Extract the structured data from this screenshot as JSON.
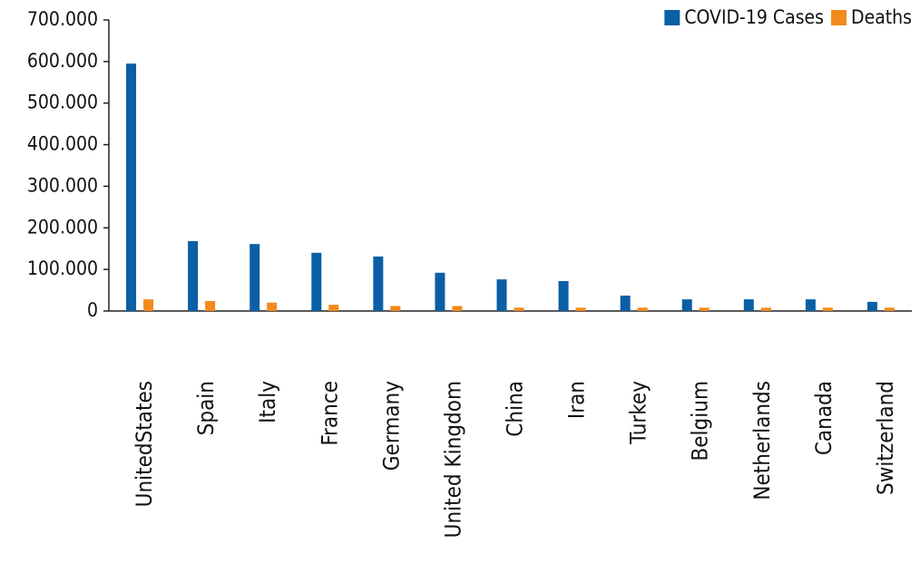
{
  "chart_data": {
    "type": "bar",
    "categories": [
      "UnitedStates",
      "Spain",
      "Italy",
      "France",
      "Germany",
      "United Kingdom",
      "China",
      "Iran",
      "Turkey",
      "Belgium",
      "Netherlands",
      "Canada",
      "Switzerland"
    ],
    "series": [
      {
        "name": "COVID-19 Cases",
        "color": "#0b5fa5",
        "values": [
          595000,
          168000,
          161000,
          140000,
          131000,
          92000,
          76000,
          72000,
          37000,
          28000,
          28000,
          28000,
          22000
        ]
      },
      {
        "name": "Deaths",
        "color": "#f28a1c",
        "values": [
          28000,
          24000,
          20000,
          15000,
          12000,
          12000,
          8000,
          8000,
          8000,
          8000,
          8000,
          8000,
          8000
        ]
      }
    ],
    "ylim": [
      0,
      700000
    ],
    "yticks": [
      {
        "value": 0,
        "label": "0"
      },
      {
        "value": 100000,
        "label": "100.000"
      },
      {
        "value": 200000,
        "label": "200.000"
      },
      {
        "value": 300000,
        "label": "300.000"
      },
      {
        "value": 400000,
        "label": "400.000"
      },
      {
        "value": 500000,
        "label": "500.000"
      },
      {
        "value": 600000,
        "label": "600.000"
      },
      {
        "value": 700000,
        "label": "700.000"
      }
    ],
    "legend": "top-right"
  }
}
